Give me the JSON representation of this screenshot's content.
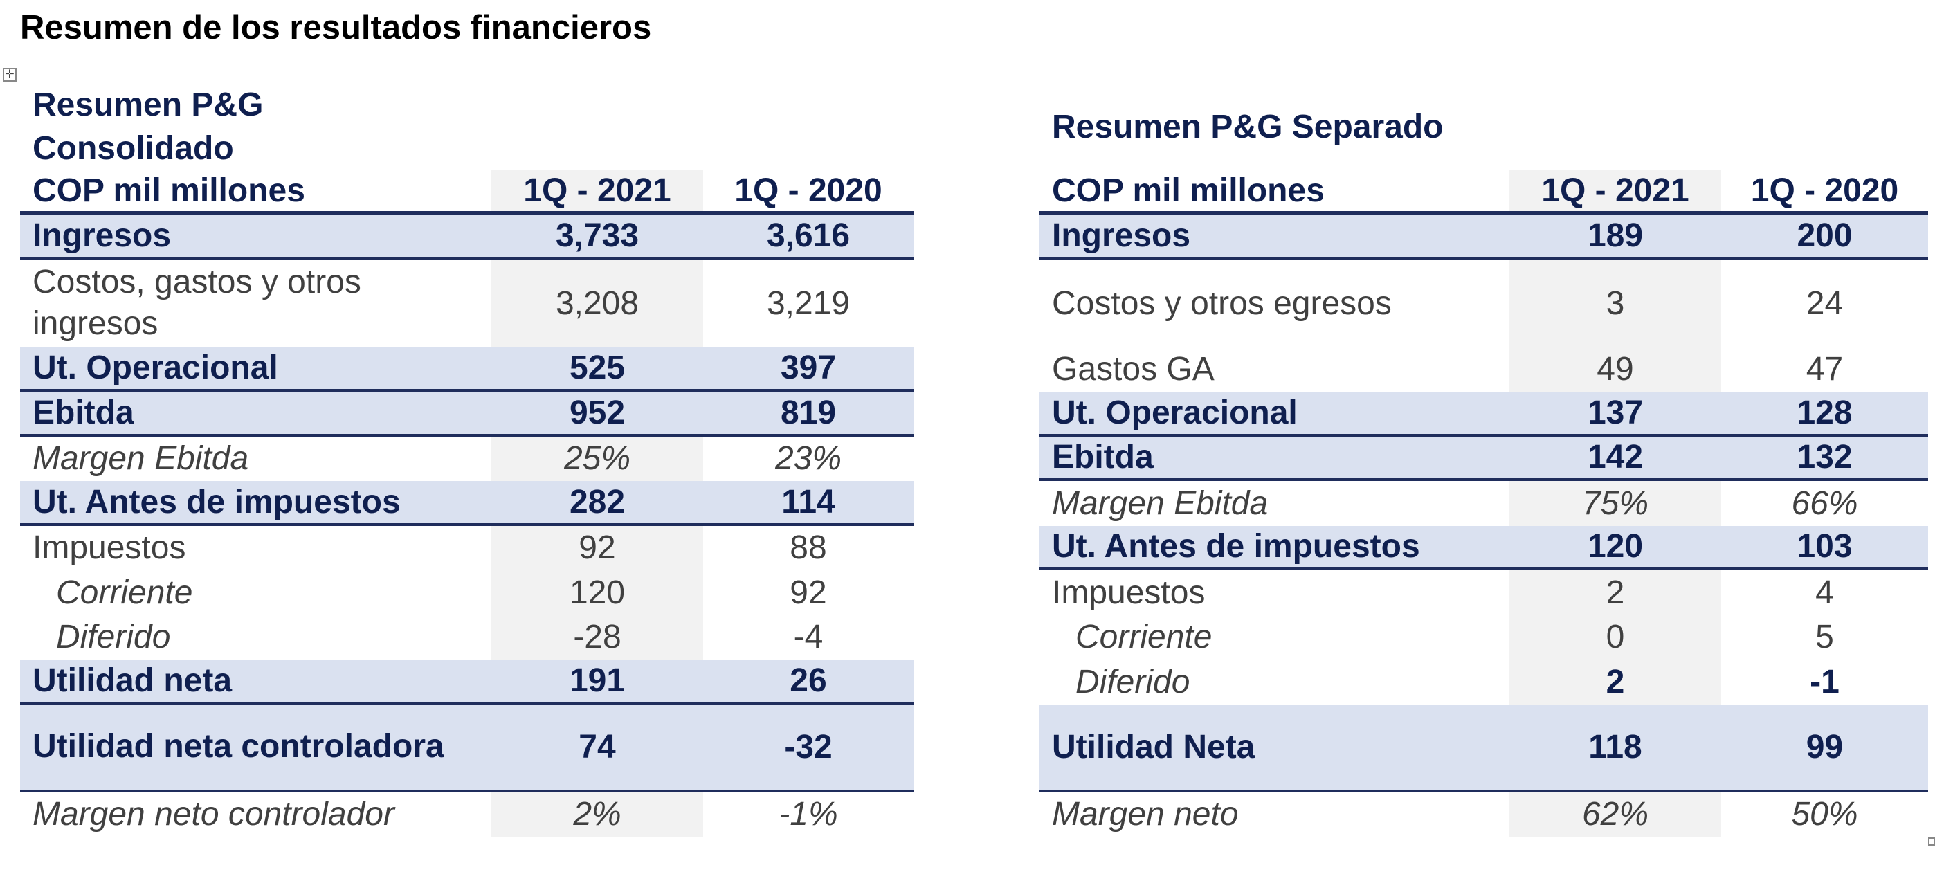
{
  "page_title": "Resumen de los resultados financieros",
  "icons": {
    "move_handle": "move-arrows-icon",
    "resize_handle": "resize-square-icon"
  },
  "colors": {
    "navy_text": "#0f1f4f",
    "highlight_row": "#dae1f0",
    "shaded_column": "#f2f2f2",
    "border": "#1f2d5c",
    "body_text": "#404040"
  },
  "consolidado": {
    "caption_lines": [
      "Resumen P&G",
      "Consolidado"
    ],
    "header": {
      "label": "COP mil millones",
      "col1": "1Q - 2021",
      "col2": "1Q - 2020"
    },
    "rows": [
      {
        "label": "Ingresos",
        "v1": "3,733",
        "v2": "3,616",
        "kind": "highlight"
      },
      {
        "label": "Costos, gastos y otros ingresos",
        "v1": "3,208",
        "v2": "3,219",
        "kind": "normal",
        "tall": true
      },
      {
        "label": "Ut. Operacional",
        "v1": "525",
        "v2": "397",
        "kind": "highlight"
      },
      {
        "label": "Ebitda",
        "v1": "952",
        "v2": "819",
        "kind": "highlight"
      },
      {
        "label": "Margen Ebitda",
        "v1": "25%",
        "v2": "23%",
        "kind": "italic"
      },
      {
        "label": "Ut. Antes de impuestos",
        "v1": "282",
        "v2": "114",
        "kind": "highlight"
      },
      {
        "label": "Impuestos",
        "v1": "92",
        "v2": "88",
        "kind": "normal"
      },
      {
        "label": "Corriente",
        "v1": "120",
        "v2": "92",
        "kind": "sub-italic"
      },
      {
        "label": "Diferido",
        "v1": "-28",
        "v2": "-4",
        "kind": "sub-italic"
      },
      {
        "label": "Utilidad neta",
        "v1": "191",
        "v2": "26",
        "kind": "highlight"
      },
      {
        "label": "Utilidad neta controladora",
        "v1": "74",
        "v2": "-32",
        "kind": "highlight",
        "tall": true
      },
      {
        "label": "Margen neto controlador",
        "v1": "2%",
        "v2": "-1%",
        "kind": "italic"
      }
    ]
  },
  "separado": {
    "caption_lines": [
      "Resumen P&G Separado"
    ],
    "header": {
      "label": "COP mil millones",
      "col1": "1Q - 2021",
      "col2": "1Q - 2020"
    },
    "rows": [
      {
        "label": "Ingresos",
        "v1": "189",
        "v2": "200",
        "kind": "highlight"
      },
      {
        "label": "Costos y otros egresos",
        "v1": "3",
        "v2": "24",
        "kind": "normal",
        "tall": true
      },
      {
        "label": "Gastos GA",
        "v1": "49",
        "v2": "47",
        "kind": "normal"
      },
      {
        "label": "Ut. Operacional",
        "v1": "137",
        "v2": "128",
        "kind": "highlight"
      },
      {
        "label": "Ebitda",
        "v1": "142",
        "v2": "132",
        "kind": "highlight"
      },
      {
        "label": "Margen Ebitda",
        "v1": "75%",
        "v2": "66%",
        "kind": "italic"
      },
      {
        "label": "Ut. Antes de impuestos",
        "v1": "120",
        "v2": "103",
        "kind": "highlight"
      },
      {
        "label": "Impuestos",
        "v1": "2",
        "v2": "4",
        "kind": "normal"
      },
      {
        "label": "Corriente",
        "v1": "0",
        "v2": "5",
        "kind": "sub-italic"
      },
      {
        "label": "Diferido",
        "v1": "2",
        "v2": "-1",
        "kind": "sub-italic",
        "bold_values": true
      },
      {
        "label": "Utilidad Neta",
        "v1": "118",
        "v2": "99",
        "kind": "highlight",
        "tall": true
      },
      {
        "label": "Margen neto",
        "v1": "62%",
        "v2": "50%",
        "kind": "italic"
      }
    ]
  }
}
